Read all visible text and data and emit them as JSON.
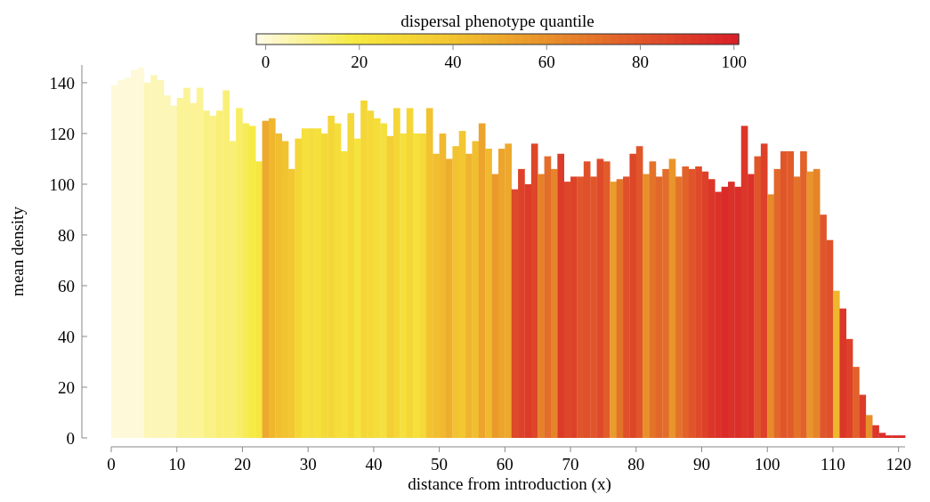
{
  "chart_data": {
    "type": "bar",
    "xlabel": "distance from introduction (x)",
    "ylabel": "mean density",
    "clabel": "dispersal phenotype quantile",
    "x": [
      0,
      1,
      2,
      3,
      4,
      5,
      6,
      7,
      8,
      9,
      10,
      11,
      12,
      13,
      14,
      15,
      16,
      17,
      18,
      19,
      20,
      21,
      22,
      23,
      24,
      25,
      26,
      27,
      28,
      29,
      30,
      31,
      32,
      33,
      34,
      35,
      36,
      37,
      38,
      39,
      40,
      41,
      42,
      43,
      44,
      45,
      46,
      47,
      48,
      49,
      50,
      51,
      52,
      53,
      54,
      55,
      56,
      57,
      58,
      59,
      60,
      61,
      62,
      63,
      64,
      65,
      66,
      67,
      68,
      69,
      70,
      71,
      72,
      73,
      74,
      75,
      76,
      77,
      78,
      79,
      80,
      81,
      82,
      83,
      84,
      85,
      86,
      87,
      88,
      89,
      90,
      91,
      92,
      93,
      94,
      95,
      96,
      97,
      98,
      99,
      100,
      101,
      102,
      103,
      104,
      105,
      106,
      107,
      108,
      109,
      110,
      111,
      112,
      113,
      114,
      115,
      116,
      117,
      118,
      119,
      120
    ],
    "values": [
      139,
      141,
      142,
      145,
      146,
      140,
      143,
      141,
      135,
      131,
      134,
      138,
      132,
      138,
      129,
      127,
      129,
      137,
      117,
      130,
      124,
      123,
      109,
      125,
      126,
      120,
      117,
      106,
      118,
      122,
      122,
      122,
      120,
      127,
      124,
      113,
      128,
      118,
      133,
      129,
      126,
      124,
      119,
      130,
      120,
      130,
      120,
      120,
      130,
      112,
      120,
      110,
      115,
      121,
      112,
      117,
      124,
      114,
      104,
      114,
      116,
      98,
      106,
      100,
      116,
      104,
      111,
      106,
      112,
      101,
      103,
      103,
      109,
      103,
      110,
      109,
      101,
      102,
      103,
      112,
      115,
      104,
      109,
      103,
      106,
      110,
      103,
      107,
      106,
      107,
      105,
      102,
      97,
      99,
      101,
      99,
      123,
      104,
      111,
      116,
      96,
      106,
      113,
      113,
      103,
      113,
      105,
      106,
      88,
      78,
      58,
      51,
      39,
      28,
      17,
      9,
      5,
      2,
      1,
      1,
      1
    ],
    "cvalues": [
      0,
      0,
      0,
      0,
      0,
      4,
      4,
      4,
      4,
      4,
      8,
      8,
      8,
      8,
      10,
      10,
      12,
      12,
      12,
      14,
      16,
      18,
      20,
      50,
      45,
      42,
      40,
      38,
      30,
      24,
      26,
      24,
      28,
      30,
      26,
      24,
      28,
      22,
      30,
      28,
      26,
      24,
      34,
      30,
      24,
      30,
      24,
      28,
      40,
      42,
      44,
      48,
      40,
      38,
      46,
      42,
      52,
      44,
      56,
      52,
      50,
      85,
      88,
      90,
      86,
      65,
      72,
      64,
      90,
      86,
      88,
      80,
      82,
      80,
      84,
      78,
      55,
      70,
      82,
      86,
      80,
      60,
      70,
      74,
      72,
      58,
      70,
      76,
      80,
      84,
      88,
      92,
      94,
      96,
      94,
      95,
      92,
      94,
      80,
      88,
      62,
      74,
      80,
      78,
      70,
      76,
      58,
      64,
      80,
      82,
      45,
      92,
      88,
      76,
      90,
      60,
      92,
      94,
      96,
      96,
      96
    ],
    "xlim": [
      0,
      121
    ],
    "xticks": [
      0,
      10,
      20,
      30,
      40,
      50,
      60,
      70,
      80,
      90,
      100,
      110,
      120
    ],
    "ylim": [
      0,
      147
    ],
    "yticks": [
      0,
      20,
      40,
      60,
      80,
      100,
      120,
      140
    ],
    "clim": [
      -2,
      101
    ],
    "cticks": [
      0,
      20,
      40,
      60,
      80,
      100
    ],
    "grid": false
  }
}
